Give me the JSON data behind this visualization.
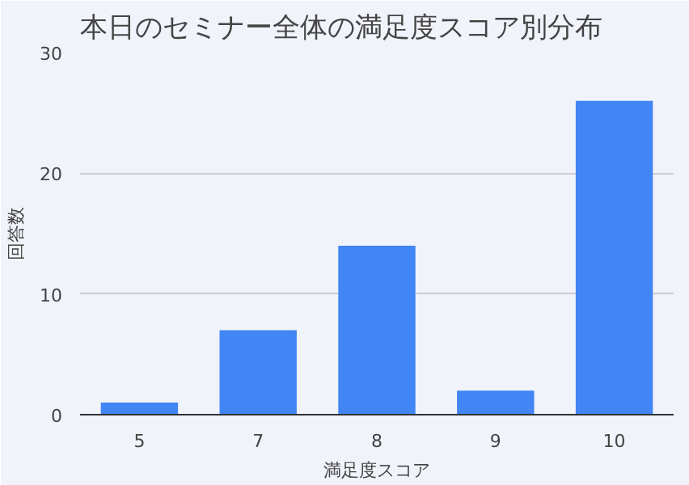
{
  "chart_data": {
    "type": "bar",
    "title": "本日のセミナー全体の満足度スコア別分布",
    "xlabel": "満足度スコア",
    "ylabel": "回答数",
    "categories": [
      "5",
      "7",
      "8",
      "9",
      "10"
    ],
    "values": [
      1,
      7,
      14,
      2,
      26
    ],
    "color": "#4285f4",
    "ylim": [
      0,
      30
    ],
    "yticks": [
      0,
      10,
      20,
      30
    ],
    "grid": "y"
  }
}
